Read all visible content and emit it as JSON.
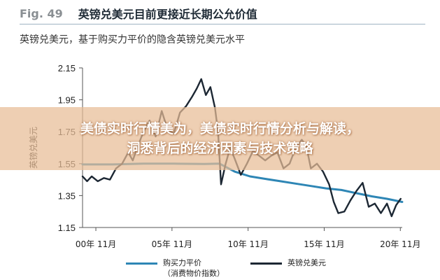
{
  "header": {
    "fig_label": "Fig. 49",
    "title": "英镑兑美元目前更接近长期公允价值"
  },
  "chart_data": {
    "type": "line",
    "title": "英镑兑美元，基于购买力平价的隐含英镑兑美元水平",
    "xlabel": "",
    "ylabel": "英镑兑美元",
    "ylim": [
      1.15,
      2.15
    ],
    "yticks": [
      "1.15",
      "1.35",
      "1.55",
      "1.75",
      "1.95",
      "2.15"
    ],
    "xlim": [
      2000.0,
      2021.0
    ],
    "xticks": [
      {
        "label": "00年 11月",
        "value": 2000.875
      },
      {
        "label": "05年 11月",
        "value": 2005.875
      },
      {
        "label": "10年 11月",
        "value": 2010.875
      },
      {
        "label": "15年 11月",
        "value": 2015.875
      },
      {
        "label": "20年 11月",
        "value": 2020.875
      }
    ],
    "grid": false,
    "legend_position": "bottom",
    "series": [
      {
        "name": "购买力平价\n（消费物价指数）",
        "color": "#2e86b5",
        "x": [
          2000.0,
          2002.0,
          2004.0,
          2006.0,
          2008.0,
          2009.0,
          2010.0,
          2011.0,
          2012.0,
          2013.0,
          2014.0,
          2015.0,
          2016.0,
          2017.0,
          2018.0,
          2019.0,
          2020.0,
          2021.0
        ],
        "values": [
          1.545,
          1.545,
          1.55,
          1.55,
          1.548,
          1.55,
          1.5,
          1.47,
          1.455,
          1.44,
          1.425,
          1.41,
          1.395,
          1.385,
          1.365,
          1.345,
          1.33,
          1.31
        ]
      },
      {
        "name": "英镑兑美元",
        "color": "#1c2733",
        "x": [
          2000.0,
          2000.3,
          2000.6,
          2001.0,
          2001.4,
          2001.8,
          2002.2,
          2002.6,
          2003.0,
          2003.3,
          2003.6,
          2004.0,
          2004.4,
          2004.8,
          2005.2,
          2005.6,
          2006.0,
          2006.4,
          2006.8,
          2007.2,
          2007.5,
          2007.8,
          2008.1,
          2008.4,
          2008.7,
          2008.9,
          2009.1,
          2009.4,
          2009.7,
          2010.0,
          2010.4,
          2010.8,
          2011.2,
          2011.6,
          2012.0,
          2012.4,
          2012.8,
          2013.2,
          2013.6,
          2014.0,
          2014.4,
          2014.7,
          2015.0,
          2015.4,
          2015.8,
          2016.2,
          2016.5,
          2016.8,
          2017.2,
          2017.6,
          2018.0,
          2018.4,
          2018.8,
          2019.2,
          2019.6,
          2020.0,
          2020.3,
          2020.6,
          2020.9
        ],
        "values": [
          1.47,
          1.44,
          1.47,
          1.44,
          1.46,
          1.45,
          1.52,
          1.55,
          1.62,
          1.57,
          1.65,
          1.75,
          1.82,
          1.72,
          1.88,
          1.76,
          1.74,
          1.87,
          1.91,
          1.97,
          2.02,
          2.08,
          1.98,
          2.03,
          1.9,
          1.75,
          1.42,
          1.55,
          1.65,
          1.58,
          1.48,
          1.55,
          1.63,
          1.6,
          1.57,
          1.6,
          1.62,
          1.52,
          1.55,
          1.65,
          1.7,
          1.66,
          1.52,
          1.55,
          1.5,
          1.42,
          1.31,
          1.24,
          1.25,
          1.32,
          1.38,
          1.43,
          1.28,
          1.3,
          1.24,
          1.3,
          1.22,
          1.29,
          1.33
        ]
      }
    ]
  },
  "banner": {
    "line1": "美债实时行情美为，美债实时行情分析与解读，",
    "line2": "洞悉背后的经济因素与技术策略"
  }
}
